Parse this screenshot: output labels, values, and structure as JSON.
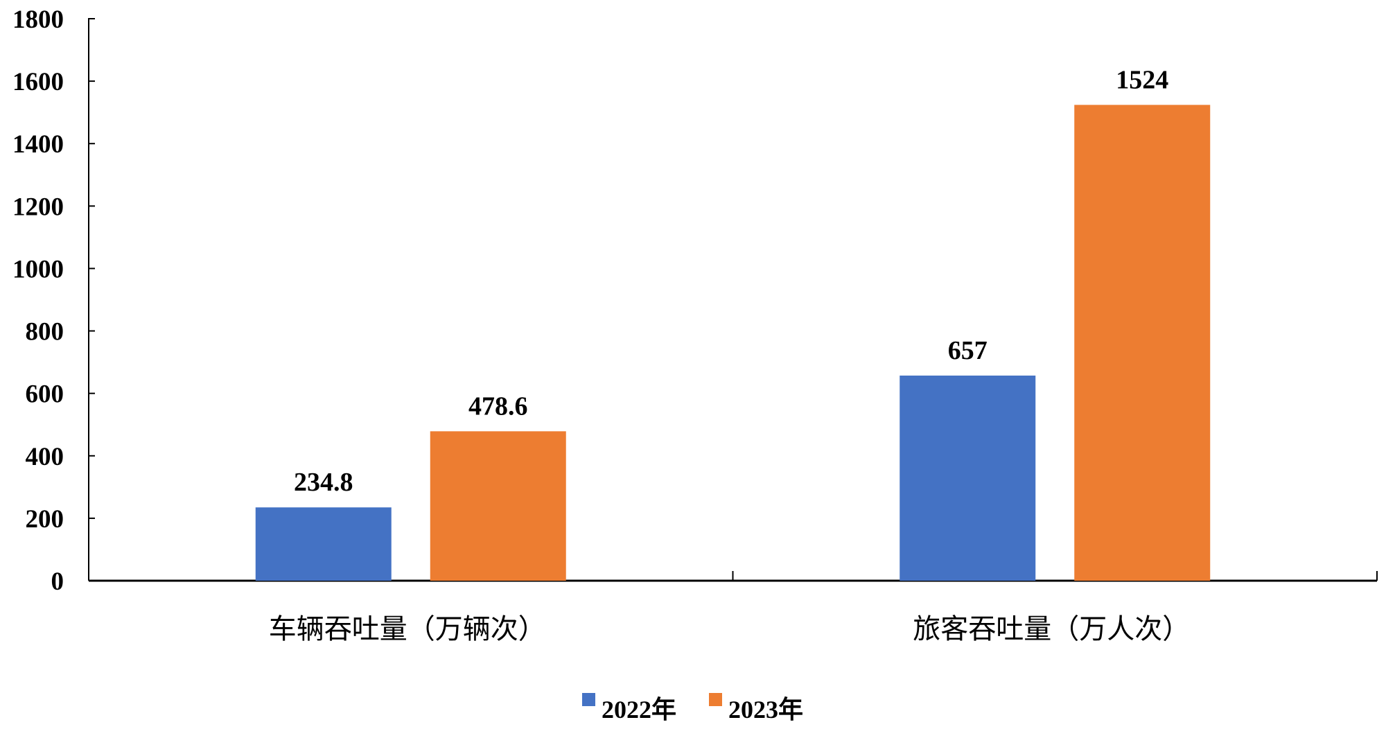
{
  "chart_data": {
    "type": "bar",
    "title": "",
    "xlabel": "",
    "ylabel": "",
    "ylim": [
      0,
      1800
    ],
    "yticks": [
      0,
      200,
      400,
      600,
      800,
      1000,
      1200,
      1400,
      1600,
      1800
    ],
    "grid": false,
    "categories": [
      "车辆吞吐量（万辆次）",
      "旅客吞吐量（万人次）"
    ],
    "series": [
      {
        "name": "2022年",
        "color": "#4472C4",
        "values": [
          234.8,
          657
        ],
        "labels": [
          "234.8",
          "657"
        ]
      },
      {
        "name": "2023年",
        "color": "#ED7D31",
        "values": [
          478.6,
          1524
        ],
        "labels": [
          "478.6",
          "1524"
        ]
      }
    ],
    "legend_position": "bottom"
  }
}
